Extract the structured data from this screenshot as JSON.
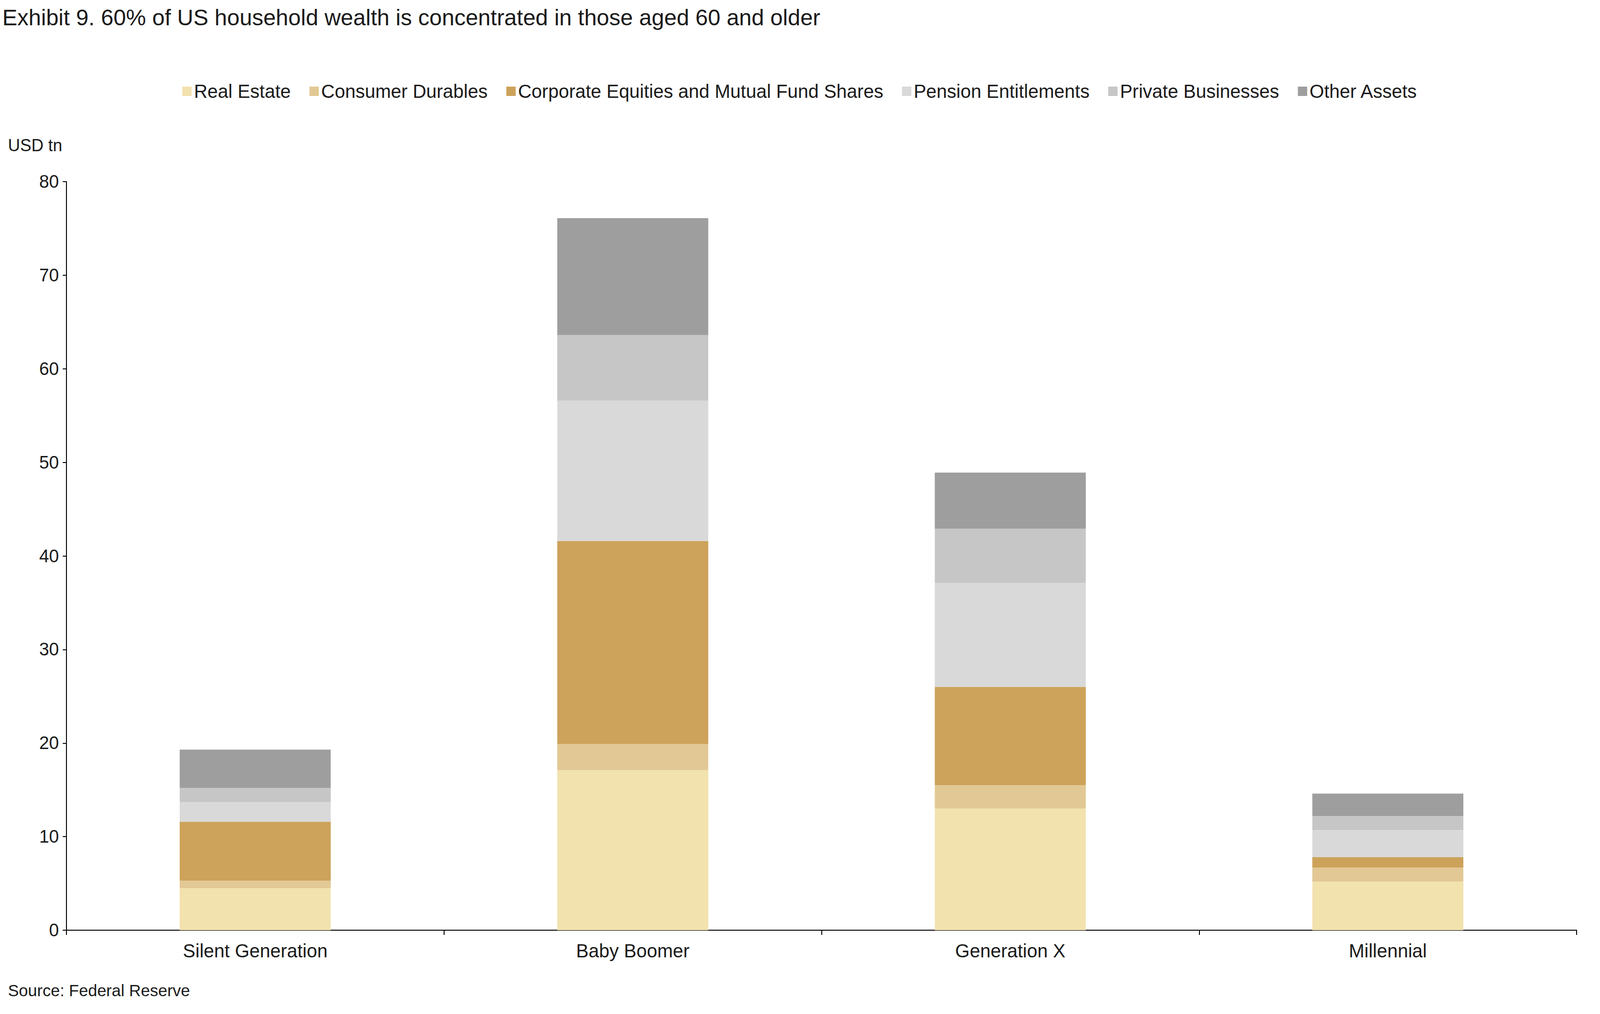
{
  "chart_data": {
    "type": "bar",
    "title": "Exhibit 9. 60% of US household wealth is concentrated in those aged 60 and older",
    "y_label": "USD tn",
    "source": "Source: Federal Reserve",
    "categories": [
      "Silent Generation",
      "Baby Boomer",
      "Generation X",
      "Millennial"
    ],
    "series": [
      {
        "name": "Real Estate",
        "color": "#F2E2AE",
        "values": [
          4.5,
          17.1,
          13.0,
          5.2
        ]
      },
      {
        "name": "Consumer Durables",
        "color": "#E2C894",
        "values": [
          0.8,
          2.8,
          2.5,
          1.5
        ]
      },
      {
        "name": "Corporate Equities and Mutual Fund Shares",
        "color": "#CDA25A",
        "values": [
          6.3,
          21.7,
          10.5,
          1.1
        ]
      },
      {
        "name": "Pension Entitlements",
        "color": "#D9D9D9",
        "values": [
          2.1,
          15.0,
          11.1,
          2.9
        ]
      },
      {
        "name": "Private Businesses",
        "color": "#C6C6C6",
        "values": [
          1.5,
          7.0,
          5.8,
          1.5
        ]
      },
      {
        "name": "Other Assets",
        "color": "#9E9E9E",
        "values": [
          4.1,
          12.5,
          6.0,
          2.4
        ]
      }
    ],
    "ylim": [
      0,
      80
    ],
    "yticks": [
      0,
      10,
      20,
      30,
      40,
      50,
      60,
      70,
      80
    ],
    "stacked": true,
    "grid": false,
    "legend": "top"
  }
}
